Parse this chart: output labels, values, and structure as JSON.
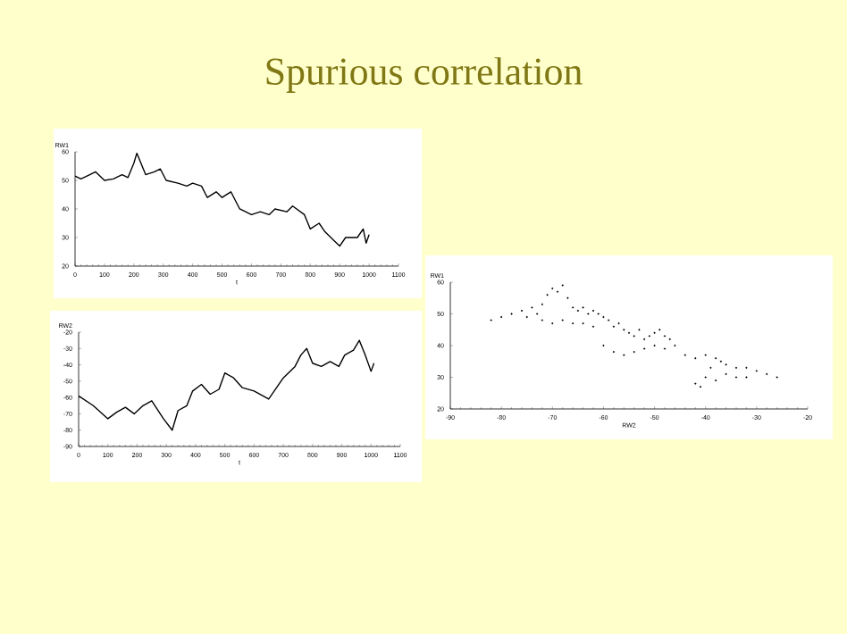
{
  "chart_data": [
    {
      "type": "line",
      "title": "Spurious correlation",
      "xlabel": "t",
      "ylabel": "RW1",
      "xlim": [
        0,
        1100
      ],
      "ylim": [
        20,
        60
      ],
      "xticks": [
        0,
        100,
        200,
        300,
        400,
        500,
        600,
        700,
        800,
        900,
        1000,
        1100
      ],
      "yticks": [
        20,
        30,
        40,
        50,
        60
      ],
      "marker": "none",
      "grid": false,
      "x": [
        0,
        20,
        50,
        70,
        100,
        130,
        160,
        180,
        200,
        210,
        240,
        270,
        290,
        310,
        350,
        380,
        400,
        430,
        450,
        480,
        500,
        530,
        560,
        600,
        630,
        660,
        680,
        720,
        740,
        780,
        800,
        830,
        850,
        880,
        900,
        920,
        960,
        980,
        990,
        1000
      ],
      "series": [
        {
          "color": "#000000",
          "values": [
            51.5,
            50.5,
            52,
            53,
            50,
            50.5,
            52,
            51,
            56,
            59.5,
            52,
            53,
            54,
            50,
            49,
            48,
            49,
            48,
            44,
            46,
            44,
            46,
            40,
            38,
            39,
            38,
            40,
            39,
            41,
            38,
            33,
            35,
            32,
            29,
            27,
            30,
            30,
            33,
            28,
            31
          ]
        }
      ]
    },
    {
      "type": "line",
      "xlabel": "t",
      "ylabel": "RW2",
      "xlim": [
        0,
        1100
      ],
      "ylim": [
        -90,
        -20
      ],
      "xticks": [
        0,
        100,
        200,
        300,
        400,
        500,
        600,
        700,
        800,
        900,
        1000,
        1100
      ],
      "yticks": [
        -90,
        -80,
        -70,
        -60,
        -50,
        -40,
        -30,
        -20
      ],
      "marker": "none",
      "grid": false,
      "x": [
        0,
        50,
        100,
        130,
        160,
        190,
        220,
        250,
        290,
        320,
        340,
        370,
        390,
        420,
        450,
        480,
        500,
        530,
        560,
        600,
        650,
        700,
        740,
        760,
        780,
        800,
        830,
        860,
        890,
        910,
        940,
        960,
        980,
        1000,
        1010
      ],
      "series": [
        {
          "color": "#000000",
          "values": [
            -59,
            -65,
            -73,
            -69,
            -66,
            -70,
            -65,
            -62,
            -73,
            -80,
            -68,
            -65,
            -56,
            -52,
            -58,
            -55,
            -45,
            -48,
            -54,
            -56,
            -61,
            -48,
            -41,
            -34,
            -30,
            -39,
            -41,
            -38,
            -41,
            -34,
            -31,
            -25,
            -34,
            -44,
            -39
          ]
        }
      ]
    },
    {
      "type": "scatter",
      "xlabel": "RW2",
      "ylabel": "RW1",
      "xlim": [
        -90,
        -20
      ],
      "ylim": [
        20,
        60
      ],
      "xticks": [
        -90,
        -80,
        -70,
        -60,
        -50,
        -40,
        -30,
        -20
      ],
      "yticks": [
        20,
        30,
        40,
        50,
        60
      ],
      "marker": "circle",
      "grid": false,
      "series": [
        {
          "color": "#000000",
          "x": [
            -82,
            -80,
            -78,
            -76,
            -75,
            -74,
            -73,
            -72,
            -71,
            -70,
            -69,
            -68,
            -67,
            -66,
            -65,
            -64,
            -63,
            -62,
            -61,
            -60,
            -59,
            -58,
            -57,
            -56,
            -55,
            -54,
            -53,
            -52,
            -51,
            -50,
            -49,
            -48,
            -47,
            -60,
            -58,
            -56,
            -54,
            -52,
            -50,
            -48,
            -46,
            -44,
            -42,
            -40,
            -38,
            -36,
            -34,
            -32,
            -30,
            -28,
            -26,
            -40,
            -38,
            -36,
            -34,
            -32,
            -42,
            -41,
            -39,
            -37,
            -72,
            -70,
            -68,
            -66,
            -64,
            -62
          ],
          "values": [
            48,
            49,
            50,
            51,
            49,
            52,
            50,
            53,
            56,
            58,
            57,
            59,
            55,
            52,
            51,
            52,
            50,
            51,
            50,
            49,
            48,
            46,
            47,
            45,
            44,
            43,
            45,
            42,
            43,
            44,
            45,
            43,
            42,
            40,
            38,
            37,
            38,
            39,
            40,
            39,
            40,
            37,
            36,
            37,
            36,
            34,
            33,
            33,
            32,
            31,
            30,
            30,
            29,
            31,
            30,
            30,
            28,
            27,
            33,
            35,
            48,
            47,
            48,
            47,
            47,
            46
          ]
        }
      ]
    }
  ]
}
